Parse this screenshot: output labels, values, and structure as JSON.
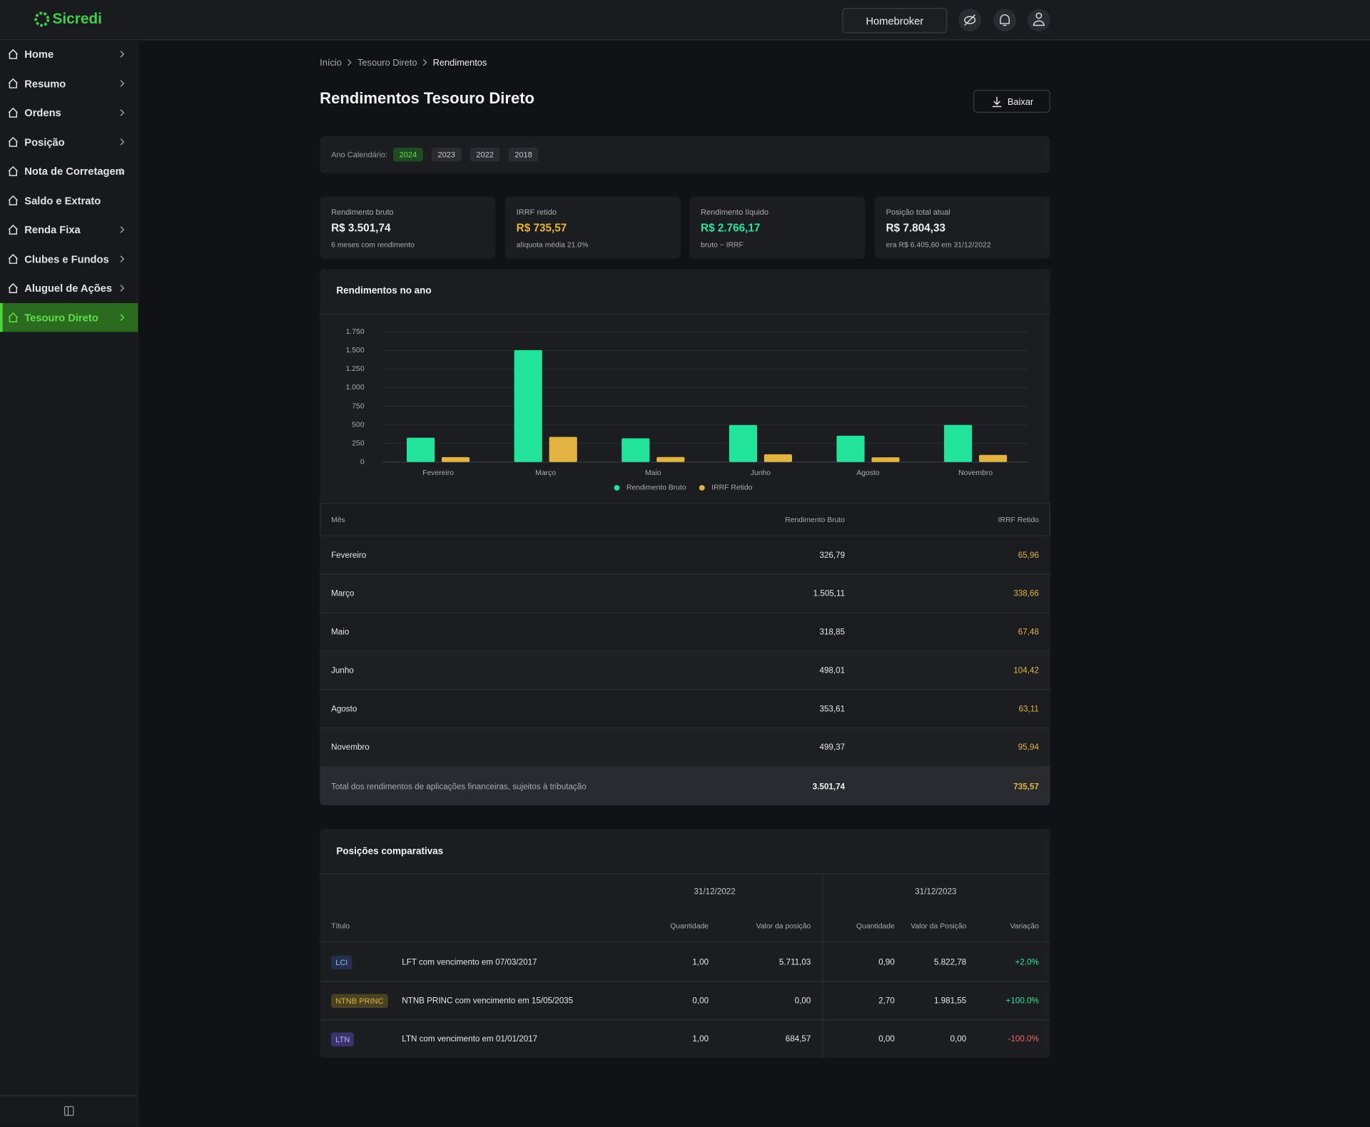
{
  "header": {
    "logo": "Sicredi",
    "button": "Homebroker"
  },
  "sidebar": {
    "items": [
      {
        "label": "Home",
        "chevron": true
      },
      {
        "label": "Resumo",
        "chevron": true
      },
      {
        "label": "Ordens",
        "chevron": true
      },
      {
        "label": "Posição",
        "chevron": true
      },
      {
        "label": "Nota de Corretagem",
        "chevron": true
      },
      {
        "label": "Saldo e Extrato",
        "chevron": false
      },
      {
        "label": "Renda Fixa",
        "chevron": true
      },
      {
        "label": "Clubes e Fundos",
        "chevron": true
      },
      {
        "label": "Aluguel de Ações",
        "chevron": true
      },
      {
        "label": "Tesouro Direto",
        "chevron": true
      }
    ],
    "active": 9
  },
  "breadcrumb": [
    "Início",
    "Tesouro Direto",
    "Rendimentos"
  ],
  "title": "Rendimentos Tesouro Direto",
  "download": "Baixar",
  "years": {
    "label": "Ano Calendário:",
    "options": [
      "2024",
      "2023",
      "2022",
      "2018"
    ],
    "active": 0
  },
  "cards": [
    {
      "label": "Rendimento bruto",
      "value": "R$ 3.501,74",
      "note": "6 meses com rendimento",
      "color": "#eef0f3"
    },
    {
      "label": "IRRF retido",
      "value": "R$ 735,57",
      "note": "alíquota média 21.0%",
      "color": "#e8b53a"
    },
    {
      "label": "Rendimento líquido",
      "value": "R$ 2.766,17",
      "note": "bruto − IRRF",
      "color": "#2ee59d"
    },
    {
      "label": "Posição total atual",
      "value": "R$ 7.804,33",
      "note": "era R$ 6.405,60 em 31/12/2022",
      "color": "#eef0f3"
    }
  ],
  "chart_section": {
    "title": "Rendimentos no ano"
  },
  "chart_data": {
    "type": "bar",
    "categories": [
      "Fevereiro",
      "Março",
      "Maio",
      "Junho",
      "Agosto",
      "Novembro"
    ],
    "series": [
      {
        "name": "Rendimento Bruto",
        "color": "#22e39a",
        "values": [
          326.79,
          1505.11,
          318.85,
          498.01,
          353.61,
          499.37
        ]
      },
      {
        "name": "IRRF Retido",
        "color": "#e3b341",
        "values": [
          65.96,
          338.66,
          67.48,
          104.42,
          63.11,
          95.94
        ]
      }
    ],
    "ylim": [
      0,
      1750
    ],
    "yticks": [
      0,
      {
        "value": 250,
        "label": "250"
      },
      {
        "value": 500,
        "label": "500"
      },
      {
        "value": 750,
        "label": "750"
      },
      {
        "value": 1000,
        "label": "1.000"
      },
      {
        "value": 1250,
        "label": "1.250"
      },
      {
        "value": 1500,
        "label": "1.500"
      },
      {
        "value": 1750,
        "label": "1.750"
      }
    ],
    "grid": true,
    "legend": "bottom"
  },
  "monthly_table": {
    "columns": [
      "Mês",
      "Rendimento Bruto",
      "IRRF Retido"
    ],
    "rows": [
      [
        "Fevereiro",
        "326,79",
        "65,96"
      ],
      [
        "Março",
        "1.505,11",
        "338,66"
      ],
      [
        "Maio",
        "318,85",
        "67,48"
      ],
      [
        "Junho",
        "498,01",
        "104,42"
      ],
      [
        "Agosto",
        "353,61",
        "63,11"
      ],
      [
        "Novembro",
        "499,37",
        "95,94"
      ]
    ],
    "total": [
      "Total dos rendimentos de aplicações financeiras, sujeitos à tributação",
      "3.501,74",
      "735,57"
    ]
  },
  "positions": {
    "title": "Posições comparativas",
    "dates": [
      "31/12/2022",
      "31/12/2023"
    ],
    "columns": [
      "Título",
      "Quantidade",
      "Valor da posição",
      "Quantidade",
      "Valor da Posição",
      "Variação"
    ],
    "rows": [
      {
        "tag": "LCI",
        "tag_bg": "#22304d",
        "tag_fg": "#9db8f0",
        "name": "LFT com vencimento em 07/03/2017",
        "q1": "1,00",
        "v1": "5.711,03",
        "q2": "0,90",
        "v2": "5.822,78",
        "var": "+2.0%",
        "var_color": "#2ee59d"
      },
      {
        "tag": "NTNB PRINC",
        "tag_bg": "#4a4220",
        "tag_fg": "#d9b23a",
        "name": "NTNB PRINC com vencimento em 15/05/2035",
        "q1": "0,00",
        "v1": "0,00",
        "q2": "2,70",
        "v2": "1.981,55",
        "var": "+100.0%",
        "var_color": "#2ee59d"
      },
      {
        "tag": "LTN",
        "tag_bg": "#3b3270",
        "tag_fg": "#bcaaf7",
        "name": "LTN com vencimento em 01/01/2017",
        "q1": "1,00",
        "v1": "684,57",
        "q2": "0,00",
        "v2": "0,00",
        "var": "-100.0%",
        "var_color": "#f0646e"
      }
    ]
  }
}
